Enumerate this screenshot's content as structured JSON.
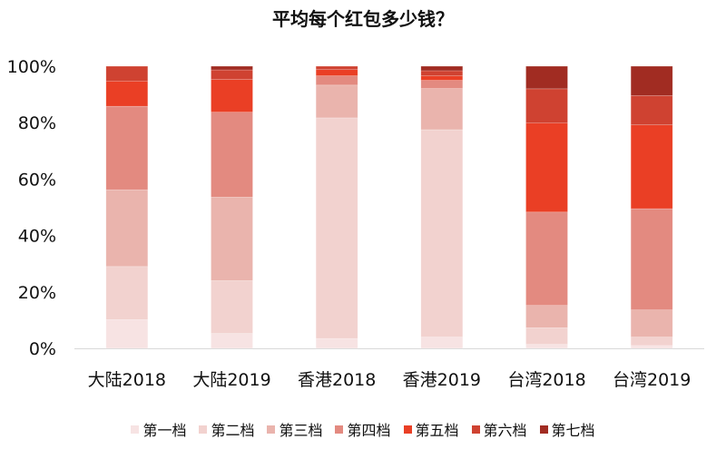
{
  "chart_data": {
    "type": "bar",
    "stacked": "percent",
    "title": "平均每个红包多少钱？",
    "xlabel": "",
    "ylabel": "",
    "ylim": [
      0,
      100
    ],
    "yticks": [
      "0%",
      "20%",
      "40%",
      "60%",
      "80%",
      "100%"
    ],
    "categories": [
      "大陆2018",
      "大陆2019",
      "香港2018",
      "香港2019",
      "台湾2018",
      "台湾2019"
    ],
    "legend_position": "bottom",
    "series": [
      {
        "name": "第一档",
        "color": "#f7e3e3",
        "values": [
          10.2,
          5.3,
          3.5,
          4.0,
          1.4,
          1.0
        ]
      },
      {
        "name": "第二档",
        "color": "#f2d2cf",
        "values": [
          18.8,
          18.7,
          78.2,
          73.5,
          5.9,
          3.0
        ]
      },
      {
        "name": "第三档",
        "color": "#eab4ad",
        "values": [
          27.2,
          29.6,
          11.6,
          14.6,
          7.9,
          9.6
        ]
      },
      {
        "name": "第四档",
        "color": "#e38a80",
        "values": [
          29.6,
          30.1,
          3.3,
          2.9,
          33.1,
          35.9
        ]
      },
      {
        "name": "第五档",
        "color": "#ea3f25",
        "values": [
          8.9,
          11.6,
          2.2,
          1.6,
          31.6,
          29.7
        ]
      },
      {
        "name": "第六档",
        "color": "#cf4231",
        "values": [
          5.3,
          3.4,
          1.2,
          1.8,
          12.1,
          10.4
        ]
      },
      {
        "name": "第七档",
        "color": "#a12c22",
        "values": [
          0,
          1.3,
          0,
          1.6,
          8.0,
          10.4
        ]
      }
    ]
  }
}
